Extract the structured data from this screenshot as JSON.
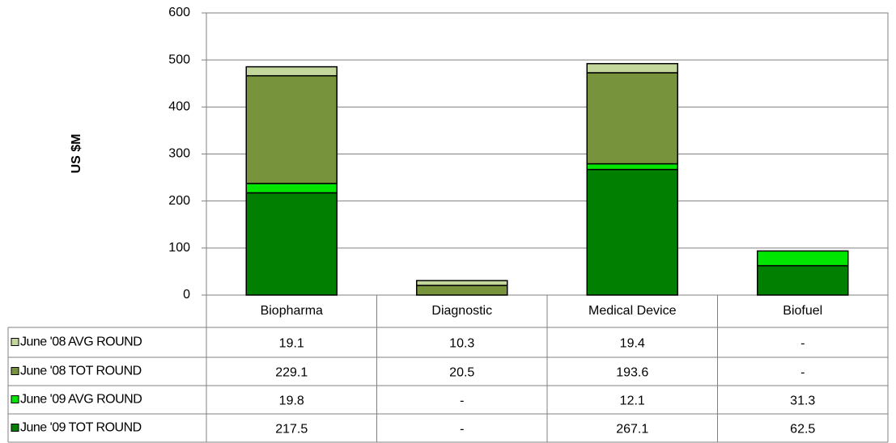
{
  "chart_data": {
    "type": "stacked_bar",
    "y_label": "US $M",
    "categories": [
      "Biopharma",
      "Diagnostic",
      "Medical Device",
      "Biofuel"
    ],
    "series": [
      {
        "name": "June '08 AVG ROUND",
        "color": "#c3d69b",
        "values": [
          19.1,
          10.3,
          19.4,
          null
        ],
        "value_labels": [
          "19.1",
          "10.3",
          "19.4",
          "-"
        ]
      },
      {
        "name": "June '08 TOT ROUND",
        "color": "#77933c",
        "values": [
          229.1,
          20.5,
          193.6,
          null
        ],
        "value_labels": [
          "229.1",
          "20.5",
          "193.6",
          "-"
        ]
      },
      {
        "name": "June '09 AVG ROUND",
        "color": "#00e600",
        "values": [
          19.8,
          null,
          12.1,
          31.3
        ],
        "value_labels": [
          "19.8",
          "-",
          "12.1",
          "31.3"
        ]
      },
      {
        "name": "June '09 TOT ROUND",
        "color": "#007f00",
        "values": [
          217.5,
          null,
          267.1,
          62.5
        ],
        "value_labels": [
          "217.5",
          "-",
          "267.1",
          "62.5"
        ]
      }
    ],
    "ylim": [
      0,
      600
    ],
    "yticks": [
      0,
      100,
      200,
      300,
      400,
      500,
      600
    ],
    "grid": true
  }
}
